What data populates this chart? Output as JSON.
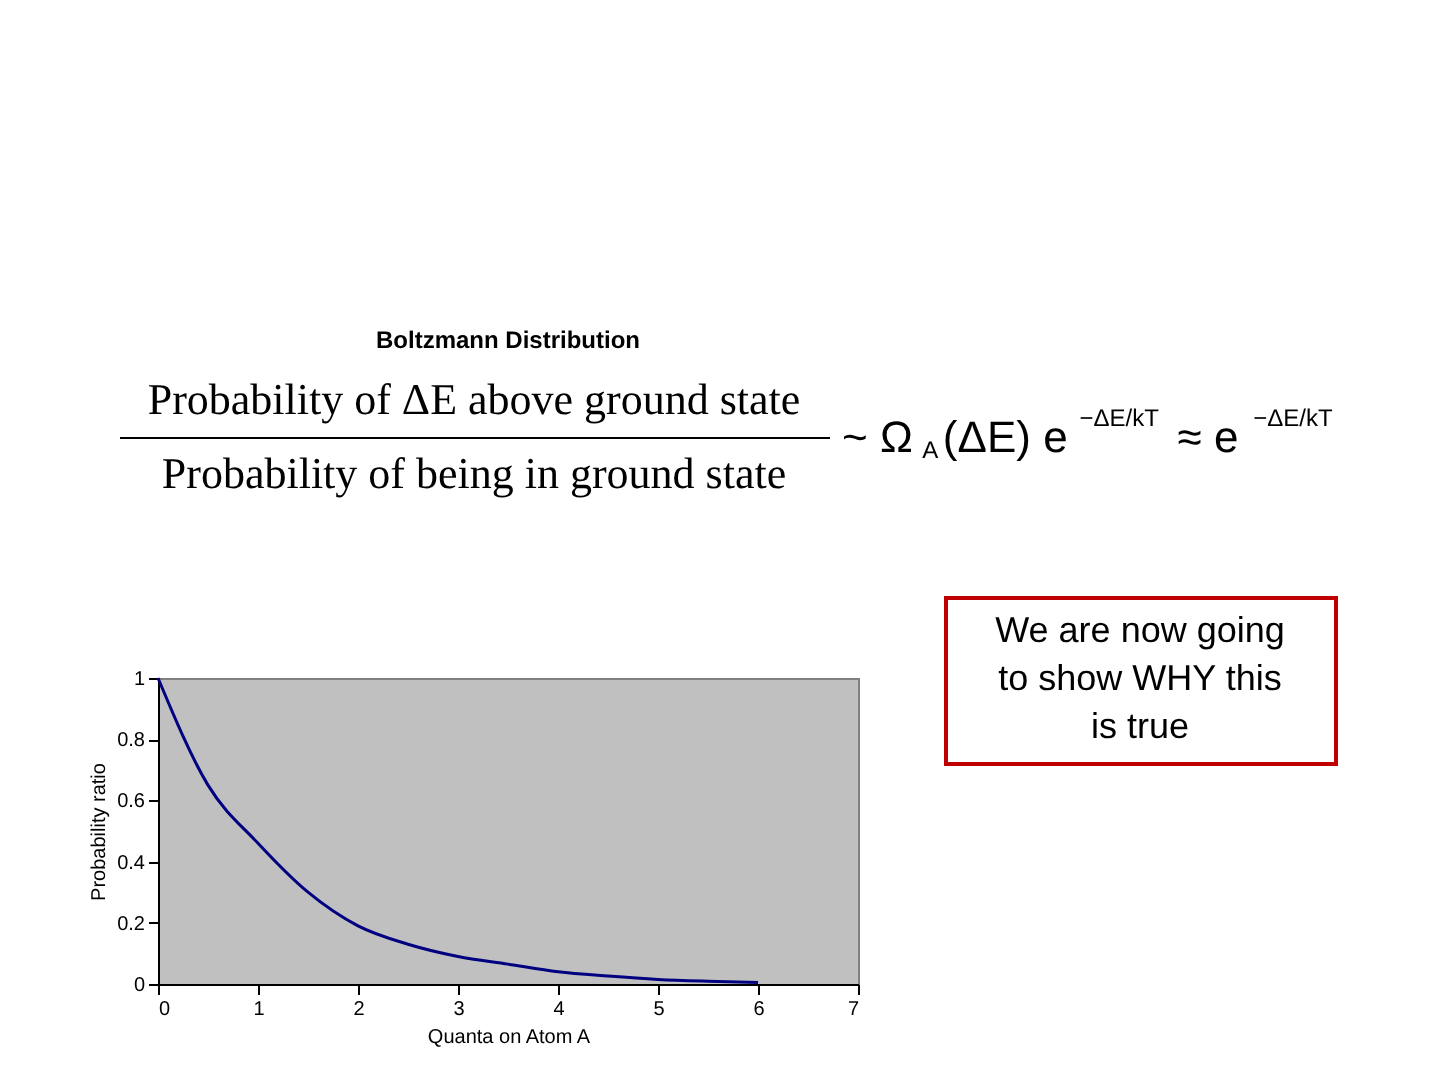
{
  "chart_data": {
    "type": "line",
    "title": "Boltzmann Distribution",
    "xlabel": "Quanta on Atom A",
    "ylabel": "Probability ratio",
    "x": [
      0,
      0.5,
      1,
      1.5,
      2,
      2.5,
      3,
      3.5,
      4,
      4.5,
      5,
      5.5,
      6
    ],
    "series": [
      {
        "color": "#000080",
        "values": [
          1,
          0.65,
          0.46,
          0.3,
          0.19,
          0.13,
          0.09,
          0.065,
          0.04,
          0.026,
          0.015,
          0.009,
          0.005
        ]
      }
    ],
    "xlim": [
      0,
      7
    ],
    "xticks": [
      0,
      1,
      2,
      3,
      4,
      5,
      6,
      7
    ],
    "ylim": [
      0,
      1
    ],
    "yticks": [
      {
        "value": 0,
        "label": "0"
      },
      0.2,
      0.4,
      0.6,
      0.8,
      {
        "value": 1,
        "label": "1"
      }
    ],
    "grid": false,
    "legend": false,
    "marker": "none",
    "line_style": "solid",
    "annotations": [
      "Probability of ΔE above ground state",
      "Probability of being in ground state",
      "~ Ω$_{A}$(ΔE) e$^{−ΔE/kT}$ ≈ e$^{−ΔE/kT}$",
      "We are now going to show WHY this is true"
    ]
  }
}
